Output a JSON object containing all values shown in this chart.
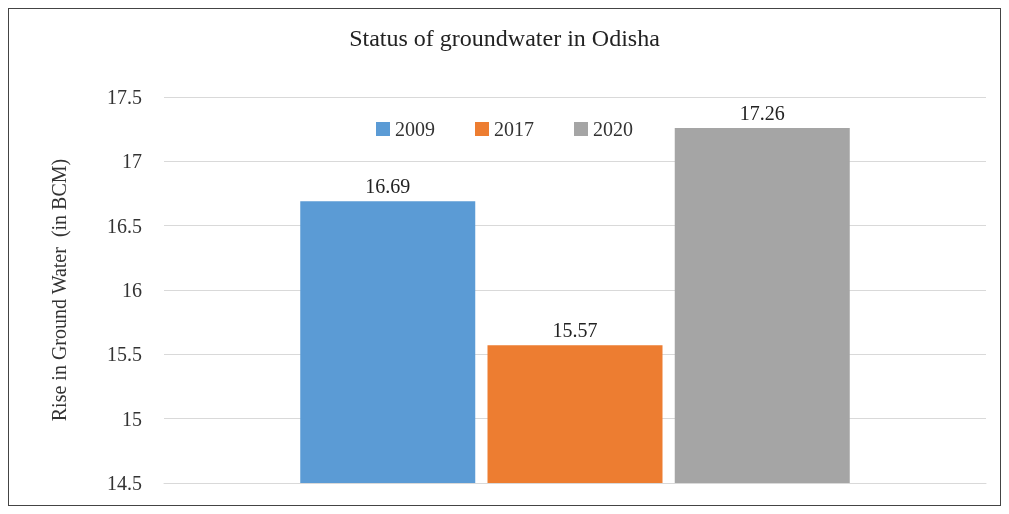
{
  "chart_data": {
    "type": "bar",
    "title": "Status of groundwater in Odisha",
    "ylabel": "Rise in Ground Water  (in BCM)",
    "categories": [
      null
    ],
    "series": [
      {
        "name": "2009",
        "color": "#5b9bd5",
        "values": [
          16.69
        ]
      },
      {
        "name": "2017",
        "color": "#ed7d31",
        "values": [
          15.57
        ]
      },
      {
        "name": "2020",
        "color": "#a5a5a5",
        "values": [
          17.26
        ]
      }
    ],
    "ylim": [
      14.5,
      17.5
    ],
    "yticks": [
      14.5,
      15,
      15.5,
      16,
      16.5,
      17,
      17.5
    ],
    "grid": "y",
    "legend": "top",
    "data_labels": true
  }
}
